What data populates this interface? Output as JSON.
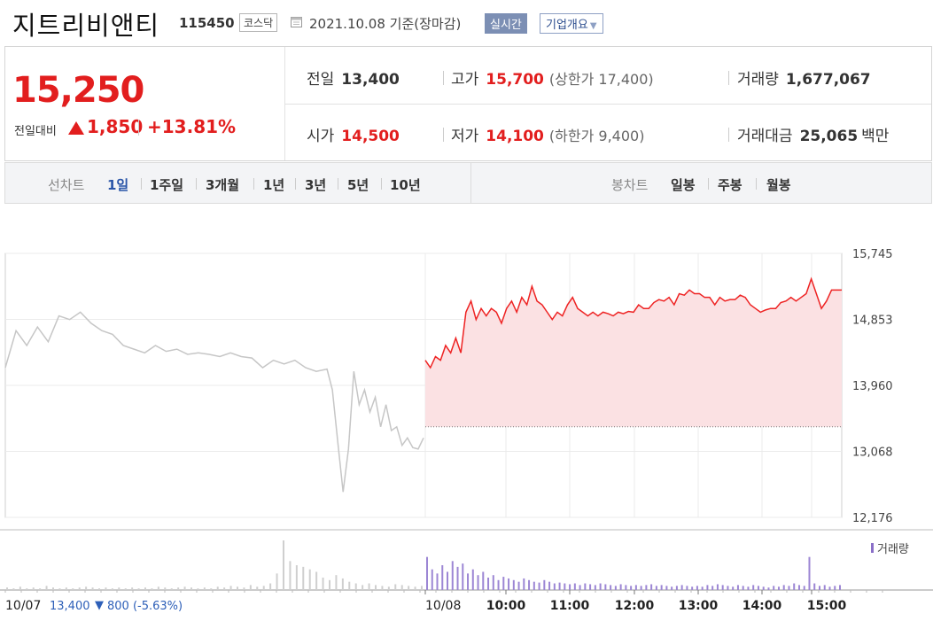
{
  "header": {
    "name": "지트리비앤티",
    "code": "115450",
    "market": "코스닥",
    "date": "2021.10.08",
    "basis": "기준(장마감)",
    "realtime": "실시간",
    "corp_overview": "기업개요"
  },
  "summary": {
    "price": "15,250",
    "compare_label": "전일대비",
    "change": "1,850",
    "change_pct": "+13.81%",
    "prev_label": "전일",
    "prev": "13,400",
    "high_label": "고가",
    "high": "15,700",
    "upper_label": "상한가",
    "upper": "17,400",
    "volume_label": "거래량",
    "volume": "1,677,067",
    "open_label": "시가",
    "open": "14,500",
    "low_label": "저가",
    "low": "14,100",
    "lower_label": "하한가",
    "lower": "9,400",
    "amount_label": "거래대금",
    "amount": "25,065",
    "amount_unit": "백만",
    "up_color": "#e21e1e"
  },
  "tabs": {
    "line_label": "선차트",
    "periods": [
      "1일",
      "1주일",
      "3개월",
      "1년",
      "3년",
      "5년",
      "10년"
    ],
    "selected": "1일",
    "candle_label": "봉차트",
    "candles": [
      "일봉",
      "주봉",
      "월봉"
    ]
  },
  "chart_data": {
    "type": "line",
    "yticks": [
      "15,745",
      "14,853",
      "13,960",
      "13,068",
      "12,176"
    ],
    "ylim": [
      12176,
      15745
    ],
    "xticks": [
      "10/08",
      "10:00",
      "11:00",
      "12:00",
      "13:00",
      "14:00",
      "15:00"
    ],
    "prev_day": {
      "date": "10/07",
      "close": "13,400",
      "change": "800",
      "change_pct": "(-5.63%)"
    },
    "volume_label": "거래량",
    "baseline": 13400,
    "prev_series": [
      [
        0,
        14200
      ],
      [
        2,
        14700
      ],
      [
        4,
        14500
      ],
      [
        6,
        14750
      ],
      [
        8,
        14550
      ],
      [
        10,
        14900
      ],
      [
        12,
        14850
      ],
      [
        14,
        14950
      ],
      [
        16,
        14800
      ],
      [
        18,
        14700
      ],
      [
        20,
        14650
      ],
      [
        22,
        14500
      ],
      [
        24,
        14450
      ],
      [
        26,
        14400
      ],
      [
        28,
        14500
      ],
      [
        30,
        14420
      ],
      [
        32,
        14450
      ],
      [
        34,
        14380
      ],
      [
        36,
        14400
      ],
      [
        38,
        14380
      ],
      [
        40,
        14350
      ],
      [
        42,
        14400
      ],
      [
        44,
        14350
      ],
      [
        46,
        14330
      ],
      [
        48,
        14200
      ],
      [
        50,
        14300
      ],
      [
        52,
        14250
      ],
      [
        54,
        14300
      ],
      [
        56,
        14200
      ],
      [
        58,
        14150
      ],
      [
        60,
        14180
      ],
      [
        61,
        13900
      ],
      [
        62,
        13200
      ],
      [
        63,
        12520
      ],
      [
        64,
        13100
      ],
      [
        65,
        14150
      ],
      [
        66,
        13700
      ],
      [
        67,
        13900
      ],
      [
        68,
        13600
      ],
      [
        69,
        13800
      ],
      [
        70,
        13400
      ],
      [
        71,
        13700
      ],
      [
        72,
        13350
      ],
      [
        73,
        13400
      ],
      [
        74,
        13150
      ],
      [
        75,
        13250
      ],
      [
        76,
        13120
      ],
      [
        77,
        13100
      ],
      [
        78,
        13250
      ]
    ],
    "today_series": [
      [
        0,
        14300
      ],
      [
        1,
        14200
      ],
      [
        2,
        14350
      ],
      [
        3,
        14300
      ],
      [
        4,
        14500
      ],
      [
        5,
        14400
      ],
      [
        6,
        14600
      ],
      [
        7,
        14400
      ],
      [
        8,
        14950
      ],
      [
        9,
        15100
      ],
      [
        10,
        14850
      ],
      [
        11,
        15000
      ],
      [
        12,
        14900
      ],
      [
        13,
        15000
      ],
      [
        14,
        14950
      ],
      [
        15,
        14800
      ],
      [
        16,
        15000
      ],
      [
        17,
        15100
      ],
      [
        18,
        14950
      ],
      [
        19,
        15150
      ],
      [
        20,
        15050
      ],
      [
        21,
        15300
      ],
      [
        22,
        15100
      ],
      [
        23,
        15050
      ],
      [
        24,
        14950
      ],
      [
        25,
        14850
      ],
      [
        26,
        14950
      ],
      [
        27,
        14900
      ],
      [
        28,
        15050
      ],
      [
        29,
        15150
      ],
      [
        30,
        15000
      ],
      [
        31,
        14950
      ],
      [
        32,
        14900
      ],
      [
        33,
        14950
      ],
      [
        34,
        14900
      ],
      [
        35,
        14950
      ],
      [
        36,
        14930
      ],
      [
        37,
        14900
      ],
      [
        38,
        14950
      ],
      [
        39,
        14930
      ],
      [
        40,
        14960
      ],
      [
        41,
        14950
      ],
      [
        42,
        15050
      ],
      [
        43,
        15000
      ],
      [
        44,
        15000
      ],
      [
        45,
        15080
      ],
      [
        46,
        15120
      ],
      [
        47,
        15100
      ],
      [
        48,
        15150
      ],
      [
        49,
        15050
      ],
      [
        50,
        15200
      ],
      [
        51,
        15180
      ],
      [
        52,
        15250
      ],
      [
        53,
        15200
      ],
      [
        54,
        15200
      ],
      [
        55,
        15150
      ],
      [
        56,
        15150
      ],
      [
        57,
        15050
      ],
      [
        58,
        15150
      ],
      [
        59,
        15100
      ],
      [
        60,
        15120
      ],
      [
        61,
        15120
      ],
      [
        62,
        15180
      ],
      [
        63,
        15150
      ],
      [
        64,
        15050
      ],
      [
        65,
        15000
      ],
      [
        66,
        14950
      ],
      [
        67,
        14980
      ],
      [
        68,
        15000
      ],
      [
        69,
        15000
      ],
      [
        70,
        15080
      ],
      [
        71,
        15100
      ],
      [
        72,
        15150
      ],
      [
        73,
        15100
      ],
      [
        74,
        15150
      ],
      [
        75,
        15200
      ],
      [
        76,
        15400
      ],
      [
        77,
        15200
      ],
      [
        78,
        15000
      ],
      [
        79,
        15100
      ],
      [
        80,
        15250
      ],
      [
        81,
        15250
      ],
      [
        82,
        15250
      ]
    ],
    "prev_volume": [
      3,
      2,
      4,
      2,
      3,
      2,
      5,
      3,
      2,
      3,
      2,
      3,
      4,
      3,
      2,
      3,
      2,
      3,
      2,
      3,
      2,
      3,
      2,
      4,
      3,
      2,
      3,
      4,
      3,
      2,
      3,
      2,
      4,
      3,
      5,
      4,
      3,
      6,
      4,
      5,
      8,
      20,
      60,
      35,
      30,
      28,
      25,
      22,
      15,
      12,
      18,
      14,
      10,
      8,
      6,
      8,
      6,
      5,
      4,
      7,
      6,
      5,
      4,
      5
    ],
    "today_volume": [
      40,
      25,
      20,
      30,
      22,
      35,
      28,
      32,
      20,
      25,
      18,
      22,
      15,
      18,
      12,
      16,
      14,
      12,
      10,
      14,
      12,
      10,
      9,
      12,
      10,
      8,
      9,
      8,
      7,
      8,
      6,
      8,
      7,
      6,
      8,
      7,
      6,
      5,
      7,
      6,
      5,
      6,
      5,
      6,
      7,
      5,
      6,
      5,
      4,
      5,
      6,
      5,
      4,
      5,
      4,
      6,
      5,
      7,
      6,
      5,
      4,
      6,
      5,
      4,
      6,
      5,
      4,
      3,
      5,
      4,
      6,
      5,
      8,
      6,
      5,
      40,
      8,
      5,
      6,
      4,
      5,
      6
    ]
  }
}
